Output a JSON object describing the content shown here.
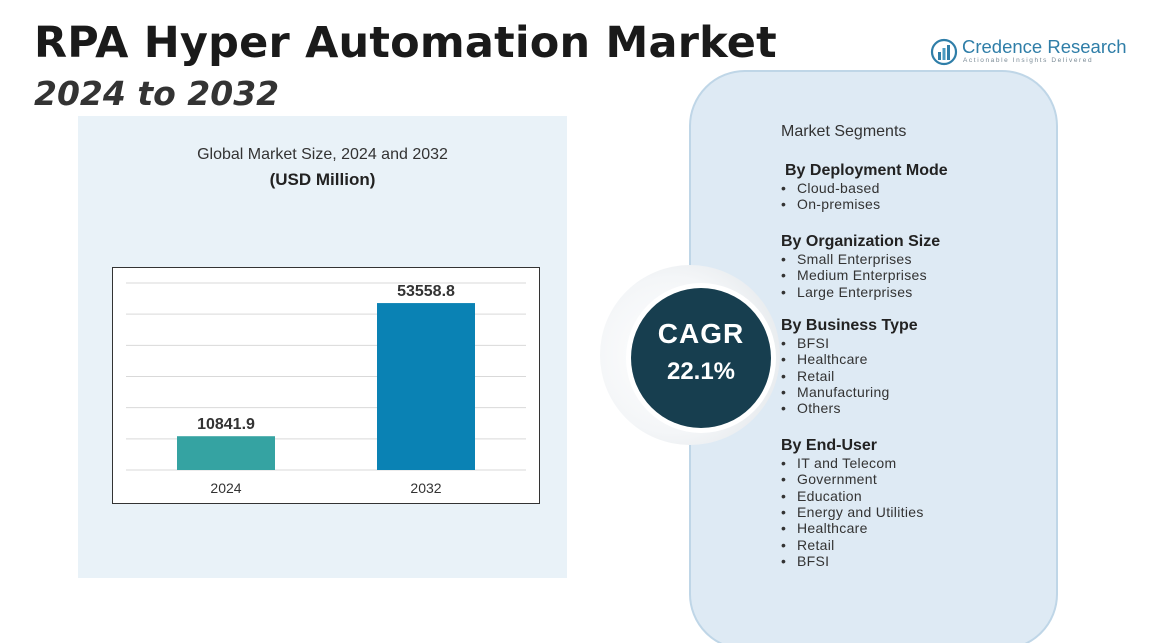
{
  "header": {
    "title": "RPA Hyper Automation Market",
    "subtitle": "2024 to 2032"
  },
  "logo": {
    "name": "Credence Research",
    "tagline": "Actionable Insights Delivered",
    "icon": "credence-logo-icon"
  },
  "chart": {
    "caption": "Global Market Size, 2024 and 2032",
    "unit": "(USD Million)"
  },
  "chart_data": {
    "type": "bar",
    "title": "Global Market Size, 2024 and 2032",
    "ylabel": "(USD Million)",
    "xlabel": "",
    "categories": [
      "2024",
      "2032"
    ],
    "values": [
      10841.9,
      53558.8
    ],
    "value_labels": [
      "10841.9",
      "53558.8"
    ],
    "colors": [
      "#35a3a2",
      "#0a82b4"
    ],
    "ylim": [
      0,
      60000
    ],
    "grid": true,
    "legend": "none"
  },
  "cagr": {
    "label": "CAGR",
    "value": "22.1%"
  },
  "segments": {
    "heading": "Market Segments",
    "groups": [
      {
        "title": "By Deployment Mode",
        "items": [
          "Cloud-based",
          "On-premises"
        ]
      },
      {
        "title": "By Organization Size",
        "items": [
          "Small Enterprises",
          "Medium Enterprises",
          "Large Enterprises"
        ]
      },
      {
        "title": "By Business Type",
        "items": [
          "BFSI",
          "Healthcare",
          "Retail",
          "Manufacturing",
          "Others"
        ]
      },
      {
        "title": "By End-User",
        "items": [
          "IT and Telecom",
          "Government",
          "Education",
          "Energy and Utilities",
          "Healthcare",
          "Retail",
          "BFSI"
        ]
      }
    ]
  }
}
